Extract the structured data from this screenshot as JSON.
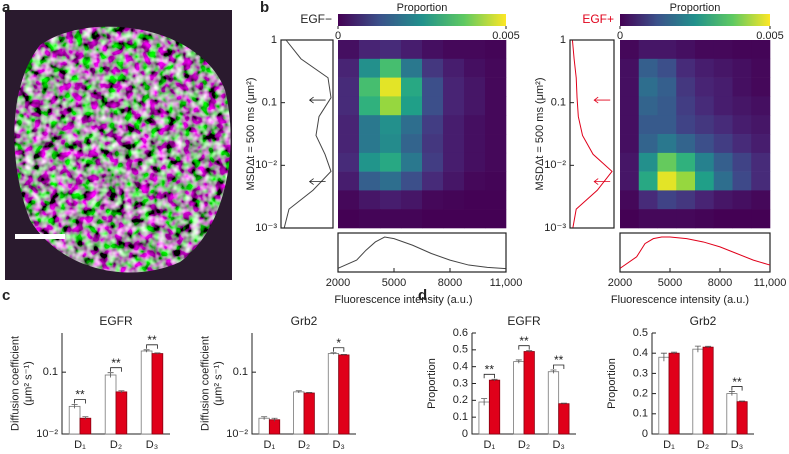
{
  "panel_labels": [
    "a",
    "b",
    "c",
    "d"
  ],
  "chart_data": [
    {
      "type": "heatmap",
      "condition": "EGF−",
      "condition_color": "#222222",
      "colorbar_label": "Proportion",
      "clim": [
        0,
        0.005
      ],
      "cticks": [
        0,
        0.005
      ],
      "x_label": "Fluorescence intensity (a.u.)",
      "y_label": "MSDΔt = 500 ms (μm²)",
      "xlim": [
        2000,
        11000
      ],
      "ylim": [
        0.001,
        1
      ],
      "ylog": true,
      "xticks": [
        2000,
        5000,
        8000,
        {
          "value": 11000,
          "label": "11,000"
        }
      ],
      "yticks": [
        1,
        0.1,
        {
          "value": 0.01,
          "label": "10⁻²"
        },
        {
          "value": 0.001,
          "label": "10⁻³"
        }
      ],
      "x_bins": [
        2000,
        3125,
        4250,
        5375,
        6500,
        7625,
        8750,
        9875,
        11000
      ],
      "y_bins": [
        1,
        0.501,
        0.251,
        0.126,
        0.0631,
        0.0316,
        0.0158,
        0.00794,
        0.00398,
        0.002,
        0.001
      ],
      "z": [
        [
          0.0002,
          0.0005,
          0.0006,
          0.0004,
          0.0002,
          0.0001,
          0.0001,
          5e-05
        ],
        [
          0.0005,
          0.0025,
          0.0035,
          0.002,
          0.0008,
          0.0004,
          0.0002,
          0.0001
        ],
        [
          0.0006,
          0.0035,
          0.0048,
          0.003,
          0.0012,
          0.0005,
          0.0003,
          0.0001
        ],
        [
          0.0006,
          0.0032,
          0.0042,
          0.0028,
          0.0012,
          0.0005,
          0.0003,
          0.0001
        ],
        [
          0.0005,
          0.002,
          0.0025,
          0.0018,
          0.0009,
          0.0004,
          0.0002,
          0.0001
        ],
        [
          0.0005,
          0.002,
          0.0024,
          0.0016,
          0.0008,
          0.0004,
          0.0002,
          0.0001
        ],
        [
          0.0006,
          0.0026,
          0.003,
          0.002,
          0.0009,
          0.0004,
          0.0002,
          0.0001
        ],
        [
          0.0004,
          0.0015,
          0.0018,
          0.0012,
          0.0006,
          0.0003,
          0.0001,
          5e-05
        ],
        [
          0.0001,
          0.0003,
          0.0004,
          0.0003,
          0.0001,
          5e-05,
          2e-05,
          1e-05
        ],
        [
          0,
          5e-05,
          5e-05,
          5e-05,
          0,
          0,
          0,
          0
        ]
      ],
      "x_marginal": {
        "color": "#444444",
        "x": [
          2000,
          3000,
          3500,
          4000,
          4500,
          5000,
          6000,
          7000,
          8000,
          9000,
          10000,
          11000
        ],
        "values": [
          0.05,
          0.3,
          0.6,
          0.85,
          1,
          0.95,
          0.75,
          0.5,
          0.3,
          0.15,
          0.08,
          0.04
        ]
      },
      "y_marginal": {
        "color": "#444444",
        "y": [
          1,
          0.5,
          0.25,
          0.12,
          0.06,
          0.03,
          0.015,
          0.008,
          0.004,
          0.002,
          0.001
        ],
        "values": [
          0.05,
          0.3,
          0.75,
          0.8,
          0.6,
          0.55,
          0.7,
          0.8,
          0.5,
          0.1,
          0.02
        ]
      }
    },
    {
      "type": "heatmap",
      "condition": "EGF+",
      "condition_color": "#e0001a",
      "colorbar_label": "Proportion",
      "clim": [
        0,
        0.005
      ],
      "cticks": [
        0,
        0.005
      ],
      "x_label": "Fluorescence intensity (a.u.)",
      "y_label": "MSDΔt = 500 ms (μm²)",
      "xlim": [
        2000,
        11000
      ],
      "ylim": [
        0.001,
        1
      ],
      "ylog": true,
      "xticks": [
        2000,
        5000,
        8000,
        {
          "value": 11000,
          "label": "11,000"
        }
      ],
      "yticks": [
        1,
        0.1,
        {
          "value": 0.01,
          "label": "10⁻²"
        },
        {
          "value": 0.001,
          "label": "10⁻³"
        }
      ],
      "x_bins": [
        2000,
        3125,
        4250,
        5375,
        6500,
        7625,
        8750,
        9875,
        11000
      ],
      "y_bins": [
        1,
        0.501,
        0.251,
        0.126,
        0.0631,
        0.0316,
        0.0158,
        0.00794,
        0.00398,
        0.002,
        0.001
      ],
      "z": [
        [
          0.0001,
          0.0003,
          0.0003,
          0.0002,
          0.0001,
          0.0001,
          5e-05,
          5e-05
        ],
        [
          0.0002,
          0.0015,
          0.0012,
          0.0006,
          0.0004,
          0.0003,
          0.0002,
          0.0001
        ],
        [
          0.0002,
          0.0018,
          0.0015,
          0.0008,
          0.0005,
          0.0004,
          0.0002,
          0.0001
        ],
        [
          0.0002,
          0.0016,
          0.0014,
          0.0009,
          0.0006,
          0.0004,
          0.0003,
          0.0002
        ],
        [
          0.0002,
          0.0014,
          0.0014,
          0.001,
          0.0008,
          0.0006,
          0.0004,
          0.0003
        ],
        [
          0.0002,
          0.0016,
          0.002,
          0.0016,
          0.0012,
          0.0009,
          0.0006,
          0.0004
        ],
        [
          0.0003,
          0.0025,
          0.0038,
          0.0032,
          0.0022,
          0.0015,
          0.001,
          0.0006
        ],
        [
          0.0003,
          0.003,
          0.0048,
          0.0042,
          0.0028,
          0.0018,
          0.0011,
          0.0006
        ],
        [
          0.0001,
          0.0006,
          0.001,
          0.0008,
          0.0005,
          0.0003,
          0.0002,
          0.0001
        ],
        [
          0,
          0.0001,
          0.0001,
          0.0001,
          5e-05,
          0,
          0,
          0
        ]
      ],
      "x_marginal": {
        "color": "#e0001a",
        "x": [
          2000,
          3000,
          3500,
          4000,
          4500,
          5000,
          6000,
          7000,
          8000,
          9000,
          10000,
          11000
        ],
        "values": [
          0.05,
          0.4,
          0.8,
          0.95,
          1,
          1,
          0.95,
          0.85,
          0.7,
          0.5,
          0.3,
          0.15
        ]
      },
      "y_marginal": {
        "color": "#e0001a",
        "y": [
          1,
          0.5,
          0.25,
          0.12,
          0.06,
          0.03,
          0.015,
          0.008,
          0.004,
          0.002,
          0.001
        ],
        "values": [
          0.01,
          0.05,
          0.1,
          0.12,
          0.15,
          0.25,
          0.5,
          0.95,
          0.6,
          0.1,
          0.02
        ]
      }
    },
    {
      "type": "bar",
      "title": "EGFR",
      "y_label": [
        "Diffusion coefficient",
        "(μm² s⁻¹)"
      ],
      "ylog": true,
      "ylim": [
        0.01,
        0.43
      ],
      "yticks": [
        {
          "value": 0.01,
          "label": "10⁻²"
        },
        0.1
      ],
      "categories": [
        "D₁",
        "D₂",
        "D₃"
      ],
      "series": [
        {
          "color": "#ffffff",
          "values": [
            0.028,
            0.09,
            0.22
          ],
          "errors": [
            0.002,
            0.008,
            0.01
          ]
        },
        {
          "color": "#e0001a",
          "values": [
            0.018,
            0.048,
            0.2
          ],
          "errors": [
            0.001,
            0.002,
            0.005
          ]
        }
      ],
      "significance": [
        "**",
        "**",
        "**"
      ]
    },
    {
      "type": "bar",
      "title": "Grb2",
      "y_label": [
        "Diffusion coefficient",
        "(μm² s⁻¹)"
      ],
      "ylog": true,
      "ylim": [
        0.01,
        0.43
      ],
      "yticks": [
        {
          "value": 0.01,
          "label": "10⁻²"
        },
        0.1
      ],
      "categories": [
        "D₁",
        "D₂",
        "D₃"
      ],
      "series": [
        {
          "color": "#ffffff",
          "values": [
            0.018,
            0.048,
            0.2
          ],
          "errors": [
            0.001,
            0.002,
            0.006
          ]
        },
        {
          "color": "#e0001a",
          "values": [
            0.017,
            0.046,
            0.19
          ],
          "errors": [
            0.001,
            0.001,
            0.004
          ]
        }
      ],
      "significance": [
        null,
        null,
        "*"
      ]
    },
    {
      "type": "bar",
      "title": "EGFR",
      "y_label": [
        "Proportion"
      ],
      "ylim": [
        0,
        0.6
      ],
      "yticks": [
        0,
        0.1,
        0.2,
        0.3,
        0.4,
        0.5,
        0.6
      ],
      "categories": [
        "D₁",
        "D₂",
        "D₃"
      ],
      "series": [
        {
          "color": "#ffffff",
          "values": [
            0.19,
            0.43,
            0.37
          ],
          "errors": [
            0.02,
            0.01,
            0.01
          ]
        },
        {
          "color": "#e0001a",
          "values": [
            0.32,
            0.49,
            0.18
          ],
          "errors": [
            0.005,
            0.005,
            0.003
          ]
        }
      ],
      "significance": [
        "**",
        "**",
        "**"
      ]
    },
    {
      "type": "bar",
      "title": "Grb2",
      "y_label": [
        "Proportion"
      ],
      "ylim": [
        0,
        0.5
      ],
      "yticks": [
        0,
        0.1,
        0.2,
        0.3,
        0.4,
        0.5
      ],
      "categories": [
        "D₁",
        "D₂",
        "D₃"
      ],
      "series": [
        {
          "color": "#ffffff",
          "values": [
            0.38,
            0.42,
            0.2
          ],
          "errors": [
            0.02,
            0.015,
            0.01
          ]
        },
        {
          "color": "#e0001a",
          "values": [
            0.4,
            0.43,
            0.16
          ],
          "errors": [
            0.005,
            0.004,
            0.003
          ]
        }
      ],
      "significance": [
        null,
        null,
        "**"
      ]
    }
  ]
}
